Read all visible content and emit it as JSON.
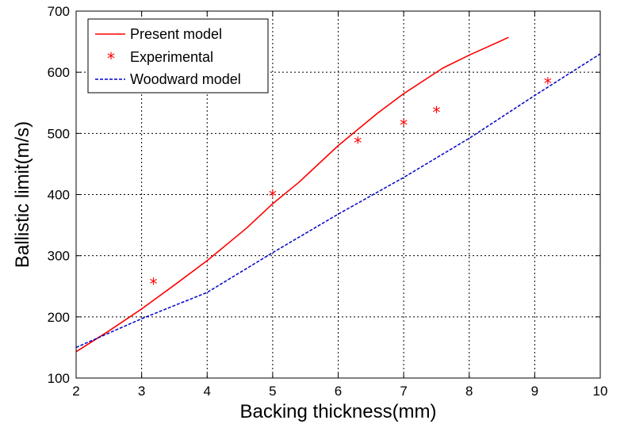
{
  "chart_data": {
    "type": "line",
    "xlabel": "Backing thickness(mm)",
    "ylabel": "Ballistic limit(m/s)",
    "xlim": [
      2,
      10
    ],
    "ylim": [
      100,
      700
    ],
    "xticks": [
      2,
      3,
      4,
      5,
      6,
      7,
      8,
      9,
      10
    ],
    "yticks": [
      100,
      200,
      300,
      400,
      500,
      600,
      700
    ],
    "grid": true,
    "legend_position": "top-left",
    "series": [
      {
        "name": "Present model",
        "style": "solid-line",
        "color": "#ff0000",
        "x": [
          2,
          2.5,
          3,
          3.5,
          4,
          4.6,
          5,
          5.4,
          6,
          6.6,
          7,
          7.6,
          8,
          8.6
        ],
        "y": [
          143,
          177,
          213,
          252,
          292,
          345,
          385,
          420,
          480,
          533,
          565,
          607,
          628,
          657
        ]
      },
      {
        "name": "Experimental",
        "style": "star-marker",
        "color": "#ff0000",
        "x": [
          3.18,
          5,
          6.3,
          7,
          7.5,
          9.2
        ],
        "y": [
          256,
          400,
          487,
          516,
          537,
          584
        ]
      },
      {
        "name": "Woodward model",
        "style": "dashed-line",
        "color": "#0000cc",
        "x": [
          2,
          3,
          4,
          5,
          6,
          7,
          8,
          9,
          10
        ],
        "y": [
          150,
          197,
          240,
          305,
          368,
          428,
          492,
          562,
          630
        ]
      }
    ]
  }
}
